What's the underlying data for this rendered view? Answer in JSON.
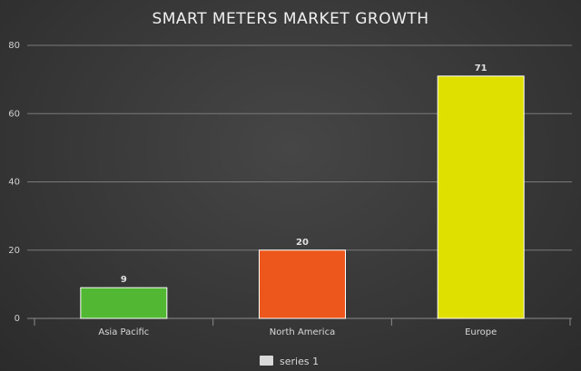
{
  "chart_data": {
    "type": "bar",
    "title": "SMART METERS MARKET GROWTH",
    "categories": [
      "Asia Pacific",
      "North America",
      "Europe"
    ],
    "series": [
      {
        "name": "series 1",
        "values": [
          9,
          20,
          71
        ]
      }
    ],
    "bar_colors": [
      "#52b833",
      "#ed571b",
      "#dfe000"
    ],
    "ylim": [
      0,
      80
    ],
    "yticks": [
      "0",
      "20",
      "40",
      "60",
      "80"
    ],
    "grid": true,
    "legend_position": "bottom-center",
    "legend_color": "#d9d9d9"
  }
}
